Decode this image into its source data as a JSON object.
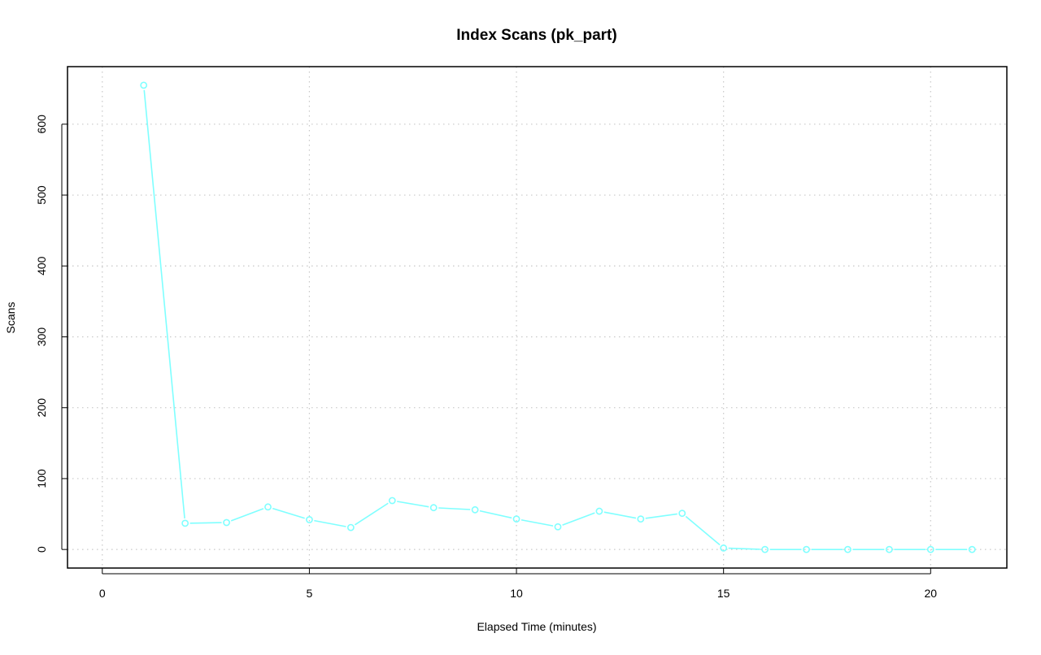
{
  "chart_data": {
    "type": "line",
    "title": "Index Scans (pk_part)",
    "xlabel": "Elapsed Time (minutes)",
    "ylabel": "Scans",
    "xlim": [
      -0.84,
      21.84
    ],
    "ylim": [
      -26.2,
      681.2
    ],
    "x_ticks": [
      0,
      5,
      10,
      15,
      20
    ],
    "y_ticks": [
      0,
      100,
      200,
      300,
      400,
      500,
      600
    ],
    "grid": true,
    "series_color": "#7FFFFF",
    "x": [
      1,
      2,
      3,
      4,
      5,
      6,
      7,
      8,
      9,
      10,
      11,
      12,
      13,
      14,
      15,
      16,
      17,
      18,
      19,
      20,
      21
    ],
    "values": [
      655,
      37,
      38,
      60,
      42,
      31,
      69,
      59,
      56,
      43,
      32,
      54,
      43,
      51,
      2,
      0,
      0,
      0,
      0,
      0,
      0
    ]
  }
}
